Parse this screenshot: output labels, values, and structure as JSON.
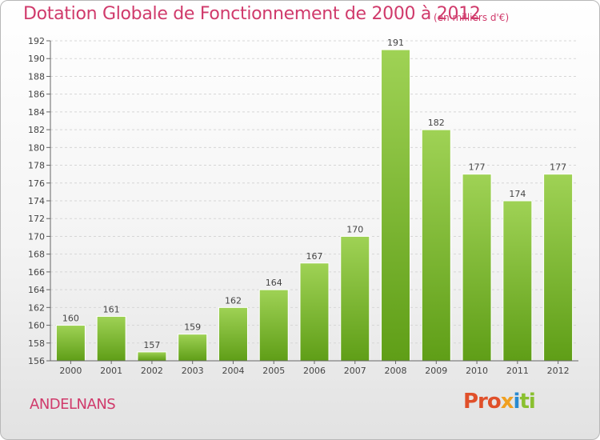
{
  "header": {
    "title": "Dotation Globale de Fonctionnement de 2000 à 2012",
    "unit_note": "(en milliers d'€)"
  },
  "footer": {
    "commune": "ANDELNANS",
    "brand": [
      "Pro",
      "x",
      "i",
      "ti"
    ]
  },
  "colors": {
    "accent": "#d03a6b",
    "bar_top": "#9fd255",
    "bar_bottom": "#5f9e17"
  },
  "chart_data": {
    "type": "bar",
    "title": "Dotation Globale de Fonctionnement de 2000 à 2012",
    "subtitle": "(en milliers d'€)",
    "categories": [
      "2000",
      "2001",
      "2002",
      "2003",
      "2004",
      "2005",
      "2006",
      "2007",
      "2008",
      "2009",
      "2010",
      "2011",
      "2012"
    ],
    "values": [
      160,
      161,
      157,
      159,
      162,
      164,
      167,
      170,
      191,
      182,
      177,
      174,
      177
    ],
    "ylim": [
      156,
      192
    ],
    "yticks": [
      156,
      158,
      160,
      162,
      164,
      166,
      168,
      170,
      172,
      174,
      176,
      178,
      180,
      182,
      184,
      186,
      188,
      190,
      192
    ],
    "grid": "horizontal dashed",
    "data_labels": true
  }
}
